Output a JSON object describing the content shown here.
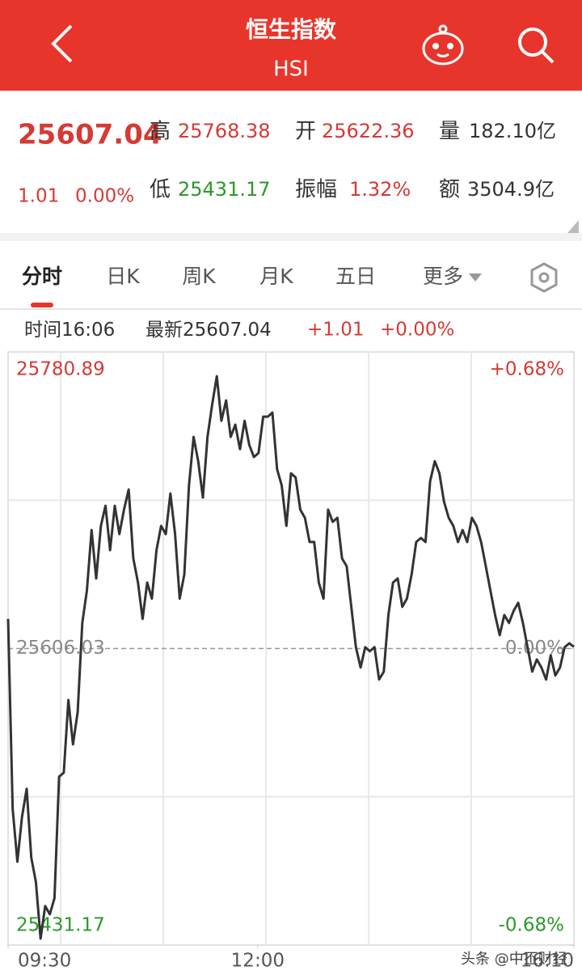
{
  "header": {
    "title": "恒生指数",
    "subtitle": "HSI"
  },
  "quote": {
    "price": "25607.04",
    "change": "1.01",
    "change_pct": "0.00%",
    "items": [
      {
        "label": "高",
        "value": "25768.38"
      },
      {
        "label": "开",
        "value": "25622.36"
      },
      {
        "label": "量",
        "value": "182.10亿"
      },
      {
        "label": "低",
        "value": "25431.17"
      },
      {
        "label": "振幅",
        "value": "1.32%"
      },
      {
        "label": "额",
        "value": "3504.9亿"
      }
    ]
  },
  "tabs": [
    "分时",
    "日K",
    "周K",
    "月K",
    "五日",
    "更多"
  ],
  "info": {
    "time_label": "时间",
    "time": "16:06",
    "latest_label": "最新",
    "latest": "25607.04",
    "change": "+1.01",
    "change_pct": "+0.00%"
  },
  "chart_data": {
    "type": "line",
    "color": "#333333",
    "ylim": [
      25431.17,
      25780.89
    ],
    "yticks": [
      25431.17,
      25606.03,
      25780.89
    ],
    "y2lim": [
      -0.68,
      0.68
    ],
    "y2ticks": [
      {
        "value": -0.68,
        "label": "-0.68%"
      },
      {
        "value": 0,
        "label": "0.00%"
      },
      {
        "value": 0.68,
        "label": "+0.68%"
      }
    ],
    "xlim": [
      0,
      340
    ],
    "xticks": [
      {
        "value": 0,
        "label": "09:30"
      },
      {
        "value": 150,
        "label": "12:00"
      },
      {
        "value": 340,
        "label": "16:10"
      }
    ],
    "series": [
      {
        "values": [
          25623.5,
          25511.3,
          25480.3,
          25506.6,
          25523.3,
          25482.7,
          25468.4,
          25435.0,
          25454.1,
          25449.3,
          25458.8,
          25530.4,
          25532.8,
          25575.7,
          25549.5,
          25568.6,
          25621.1,
          25640.2,
          25675.9,
          25647.3,
          25678.3,
          25690.2,
          25664.0,
          25690.2,
          25673.5,
          25687.9,
          25699.8,
          25659.2,
          25644.9,
          25623.5,
          25644.9,
          25635.4,
          25664.0,
          25678.3,
          25673.5,
          25697.4,
          25673.5,
          25635.4,
          25649.7,
          25702.2,
          25730.8,
          25716.5,
          25695.0,
          25730.8,
          25749.9,
          25766.6,
          25740.3,
          25752.3,
          25730.8,
          25738.0,
          25723.6,
          25740.3,
          25726.0,
          25718.9,
          25721.3,
          25742.7,
          25742.7,
          25745.1,
          25711.7,
          25702.2,
          25678.3,
          25709.3,
          25706.9,
          25687.9,
          25683.1,
          25668.8,
          25668.8,
          25644.9,
          25635.4,
          25687.9,
          25680.7,
          25683.1,
          25659.2,
          25654.5,
          25630.6,
          25606.8,
          25594.8,
          25606.8,
          25604.4,
          25606.8,
          25587.7,
          25592.4,
          25625.8,
          25644.9,
          25647.3,
          25630.6,
          25635.4,
          25649.7,
          25668.8,
          25671.2,
          25668.8,
          25704.6,
          25716.5,
          25709.3,
          25692.6,
          25683.1,
          25678.3,
          25668.8,
          25675.9,
          25668.8,
          25683.1,
          25678.3,
          25668.8,
          25654.5,
          25640.2,
          25625.8,
          25613.9,
          25625.8,
          25621.1,
          25628.2,
          25633.0,
          25621.1,
          25606.8,
          25592.4,
          25599.6,
          25594.8,
          25587.7,
          25602.0,
          25590.1,
          25594.8,
          25606.8,
          25609.1,
          25607.04
        ]
      }
    ]
  },
  "watermark": "头条 @中丕财经"
}
